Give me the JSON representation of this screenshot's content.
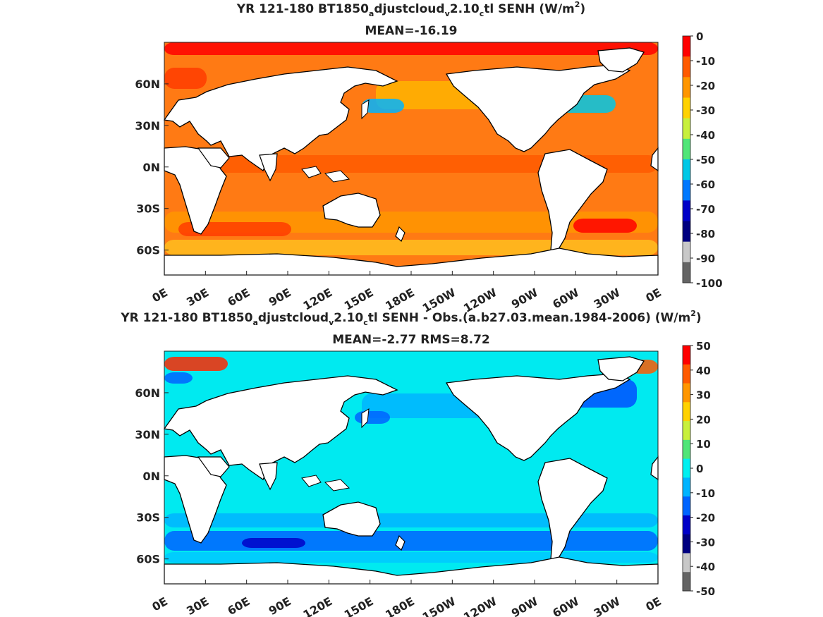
{
  "chart_data": [
    {
      "type": "heatmap",
      "title_parts": [
        "YR 121-180 BT1850",
        "a",
        "djustcloud",
        "v",
        "2.10",
        "c",
        "tl  SENH (W/m",
        "2",
        ")"
      ],
      "subtitle": "MEAN=-16.19",
      "xticks": [
        "0E",
        "30E",
        "60E",
        "90E",
        "120E",
        "150E",
        "180E",
        "150W",
        "120W",
        "90W",
        "60W",
        "30W",
        "0E"
      ],
      "yticks": [
        "60N",
        "30N",
        "0N",
        "30S",
        "60S"
      ],
      "ytick_lat": [
        60,
        30,
        0,
        -30,
        -60
      ],
      "lat_range": [
        -78,
        90
      ],
      "colorbar": {
        "ticks": [
          "0",
          "-10",
          "-20",
          "-30",
          "-40",
          "-50",
          "-60",
          "-70",
          "-80",
          "-90",
          "-100"
        ],
        "colors": [
          "#ff0000",
          "#ff5a00",
          "#ff9600",
          "#ffd200",
          "#c8f03c",
          "#50e678",
          "#00c8e6",
          "#0078ff",
          "#0000c8",
          "#000080",
          "#c8c8c8",
          "#646464"
        ]
      },
      "dominant_color": "#ff7a14"
    },
    {
      "type": "heatmap",
      "title_parts": [
        "YR 121-180 BT1850",
        "a",
        "djustcloud",
        "v",
        "2.10",
        "c",
        "tl SENH - Obs.(a.b27.03.mean.1984-2006) (W/m",
        "2",
        ")"
      ],
      "subtitle": "MEAN=-2.77 RMS=8.72",
      "xticks": [
        "0E",
        "30E",
        "60E",
        "90E",
        "120E",
        "150E",
        "180E",
        "150W",
        "120W",
        "90W",
        "60W",
        "30W",
        "0E"
      ],
      "yticks": [
        "60N",
        "30N",
        "0N",
        "30S",
        "60S"
      ],
      "ytick_lat": [
        60,
        30,
        0,
        -30,
        -60
      ],
      "lat_range": [
        -78,
        90
      ],
      "colorbar": {
        "ticks": [
          "50",
          "40",
          "30",
          "20",
          "10",
          "0",
          "-10",
          "-20",
          "-30",
          "-40",
          "-50"
        ],
        "colors": [
          "#ff0000",
          "#ff5a00",
          "#ff9600",
          "#ffd200",
          "#c8f03c",
          "#50e678",
          "#00f0f0",
          "#00b4ff",
          "#0064ff",
          "#0000c8",
          "#000080",
          "#c8c8c8",
          "#646464"
        ]
      },
      "dominant_color": "#00eaf0"
    }
  ]
}
